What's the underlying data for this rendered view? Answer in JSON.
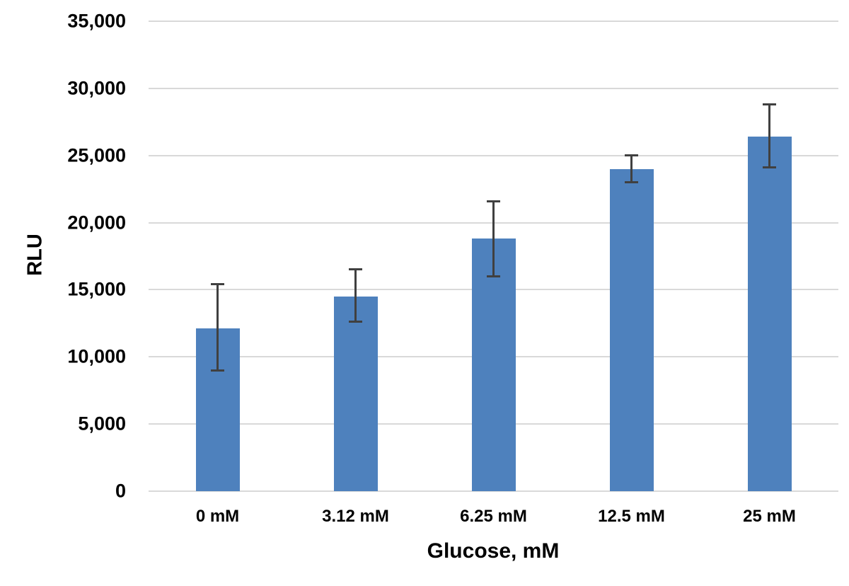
{
  "chart_data": {
    "type": "bar",
    "title": "",
    "xlabel": "Glucose, mM",
    "ylabel": "RLU",
    "categories": [
      "0 mM",
      "3.12 mM",
      "6.25 mM",
      "12.5 mM",
      "25 mM"
    ],
    "values": [
      12100,
      14500,
      18800,
      24000,
      26400
    ],
    "error_upper": [
      3300,
      2000,
      2800,
      1000,
      2400
    ],
    "error_lower": [
      3100,
      1900,
      2800,
      1000,
      2300
    ],
    "ylim": [
      0,
      35000
    ],
    "yticks": [
      0,
      5000,
      10000,
      15000,
      20000,
      25000,
      30000,
      35000
    ],
    "ytick_labels": [
      "0",
      "5,000",
      "10,000",
      "15,000",
      "20,000",
      "25,000",
      "30,000",
      "35,000"
    ],
    "grid": true,
    "legend_position": "none",
    "bar_color": "#4E81BD",
    "error_color": "#404040",
    "gridline_color": "#D9D9D9",
    "text_color": "#000000"
  }
}
